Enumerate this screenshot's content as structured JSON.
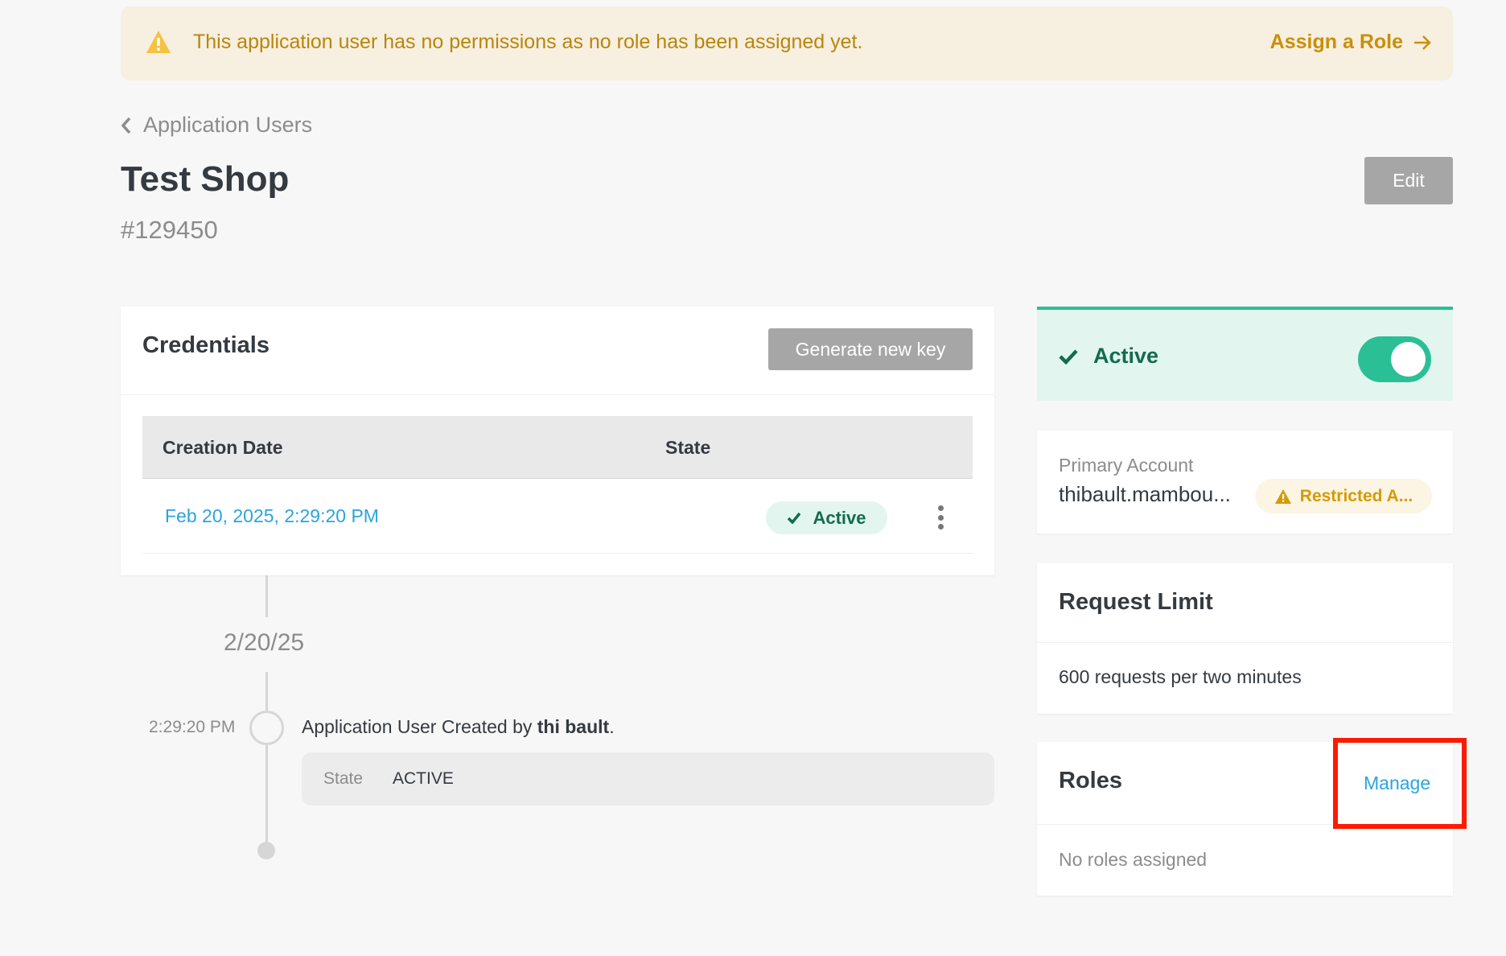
{
  "banner": {
    "message": "This application user has no permissions as no role has been assigned yet.",
    "action": "Assign a Role",
    "icon": "warning-icon"
  },
  "breadcrumb": {
    "back_label": "Application Users"
  },
  "header": {
    "title": "Test Shop",
    "id": "#129450",
    "edit_label": "Edit"
  },
  "credentials": {
    "title": "Credentials",
    "generate_label": "Generate new key",
    "columns": [
      "Creation Date",
      "State"
    ],
    "rows": [
      {
        "creation_date": "Feb 20, 2025, 2:29:20 PM",
        "state": "Active"
      }
    ]
  },
  "timeline": {
    "date": "2/20/25",
    "events": [
      {
        "time": "2:29:20 PM",
        "text_prefix": "Application User Created by",
        "actor": "thi bault",
        "text_suffix": ".",
        "field_label": "State",
        "field_value": "ACTIVE"
      }
    ]
  },
  "status": {
    "label": "Active",
    "toggle_on": true
  },
  "primary_account": {
    "label": "Primary Account",
    "value": "thibault.mambou...",
    "badge": "Restricted A..."
  },
  "request_limit": {
    "title": "Request Limit",
    "value": "600 requests per two minutes"
  },
  "roles": {
    "title": "Roles",
    "manage_label": "Manage",
    "empty_text": "No roles assigned"
  },
  "colors": {
    "accent": "#2bbf96",
    "link": "#2ba4de",
    "warning": "#c98f0a",
    "highlight": "#ff1a00"
  }
}
